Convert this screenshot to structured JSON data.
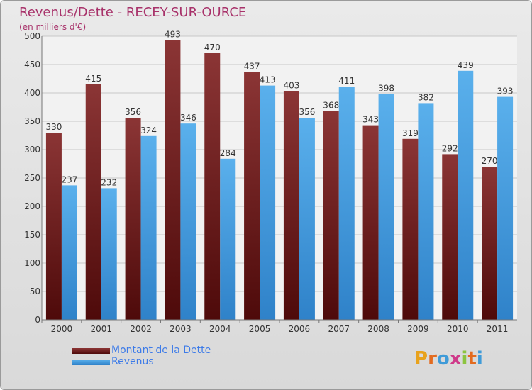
{
  "title": "Revenus/Dette - RECEY-SUR-OURCE",
  "subtitle": "(en milliers d'€)",
  "legend": {
    "debt_label": "Montant de la Dette",
    "revenue_label": "Revenus"
  },
  "logo": {
    "text": "Proxiti",
    "letters": [
      "P",
      "r",
      "o",
      "x",
      "i",
      "t",
      "i"
    ]
  },
  "colors": {
    "debt_top": "#8b3535",
    "debt_bottom": "#4e0a0a",
    "revenue_top": "#5ab0ec",
    "revenue_bottom": "#2f82c9",
    "title": "#a8326a",
    "legend_text": "#3d7be8"
  },
  "chart_data": {
    "type": "bar",
    "categories": [
      "2000",
      "2001",
      "2002",
      "2003",
      "2004",
      "2005",
      "2006",
      "2007",
      "2008",
      "2009",
      "2010",
      "2011"
    ],
    "series": [
      {
        "name": "Montant de la Dette",
        "values": [
          330,
          415,
          356,
          493,
          470,
          437,
          403,
          368,
          343,
          319,
          292,
          270
        ]
      },
      {
        "name": "Revenus",
        "values": [
          237,
          232,
          324,
          346,
          284,
          413,
          356,
          411,
          398,
          382,
          439,
          393
        ]
      }
    ],
    "ylim": [
      0,
      500
    ],
    "yticks": [
      0,
      50,
      100,
      150,
      200,
      250,
      300,
      350,
      400,
      450,
      500
    ],
    "grid": true,
    "legend_position": "bottom-left"
  }
}
